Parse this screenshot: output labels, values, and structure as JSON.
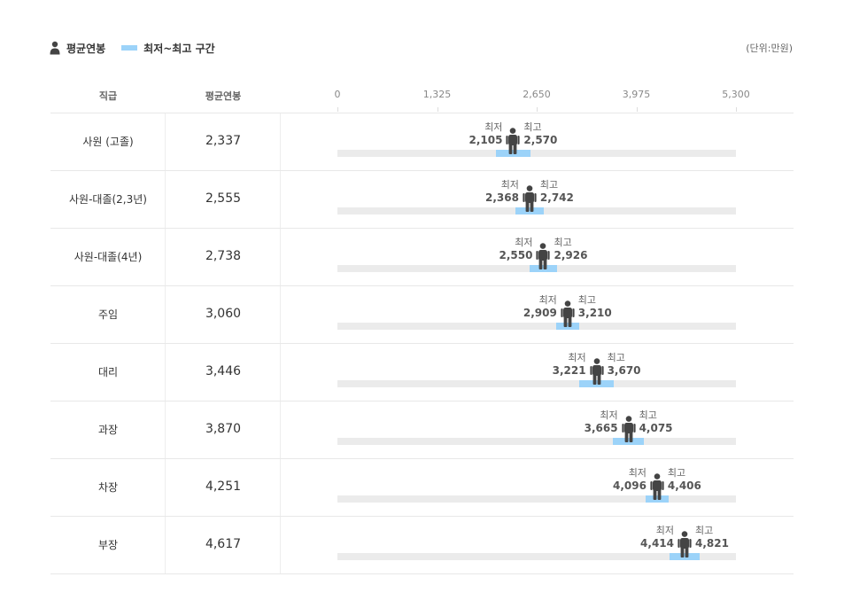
{
  "legend": {
    "avg_label": "평균연봉",
    "range_label": "최저~최고 구간",
    "icons": {
      "avg": "person-icon",
      "range": "range-swatch"
    }
  },
  "unit_label": "(단위:만원)",
  "columns": {
    "grade": "직급",
    "avg": "평균연봉"
  },
  "labels": {
    "min": "최저",
    "max": "최고"
  },
  "colors": {
    "range": "#9cd3f9",
    "track": "#ebebeb",
    "figure": "#444444"
  },
  "chart_data": {
    "type": "range",
    "xlim": [
      0,
      5300
    ],
    "ticks": [
      0,
      1325,
      2650,
      3975,
      5300
    ],
    "tick_labels": [
      "0",
      "1,325",
      "2,650",
      "3,975",
      "5,300"
    ],
    "rows": [
      {
        "grade": "사원 (고졸)",
        "avg": 2337,
        "avg_label": "2,337",
        "min": 2105,
        "min_label": "2,105",
        "max": 2570,
        "max_label": "2,570"
      },
      {
        "grade": "사원-대졸(2,3년)",
        "avg": 2555,
        "avg_label": "2,555",
        "min": 2368,
        "min_label": "2,368",
        "max": 2742,
        "max_label": "2,742"
      },
      {
        "grade": "사원-대졸(4년)",
        "avg": 2738,
        "avg_label": "2,738",
        "min": 2550,
        "min_label": "2,550",
        "max": 2926,
        "max_label": "2,926"
      },
      {
        "grade": "주임",
        "avg": 3060,
        "avg_label": "3,060",
        "min": 2909,
        "min_label": "2,909",
        "max": 3210,
        "max_label": "3,210"
      },
      {
        "grade": "대리",
        "avg": 3446,
        "avg_label": "3,446",
        "min": 3221,
        "min_label": "3,221",
        "max": 3670,
        "max_label": "3,670"
      },
      {
        "grade": "과장",
        "avg": 3870,
        "avg_label": "3,870",
        "min": 3665,
        "min_label": "3,665",
        "max": 4075,
        "max_label": "4,075"
      },
      {
        "grade": "차장",
        "avg": 4251,
        "avg_label": "4,251",
        "min": 4096,
        "min_label": "4,096",
        "max": 4406,
        "max_label": "4,406"
      },
      {
        "grade": "부장",
        "avg": 4617,
        "avg_label": "4,617",
        "min": 4414,
        "min_label": "4,414",
        "max": 4821,
        "max_label": "4,821"
      }
    ]
  }
}
